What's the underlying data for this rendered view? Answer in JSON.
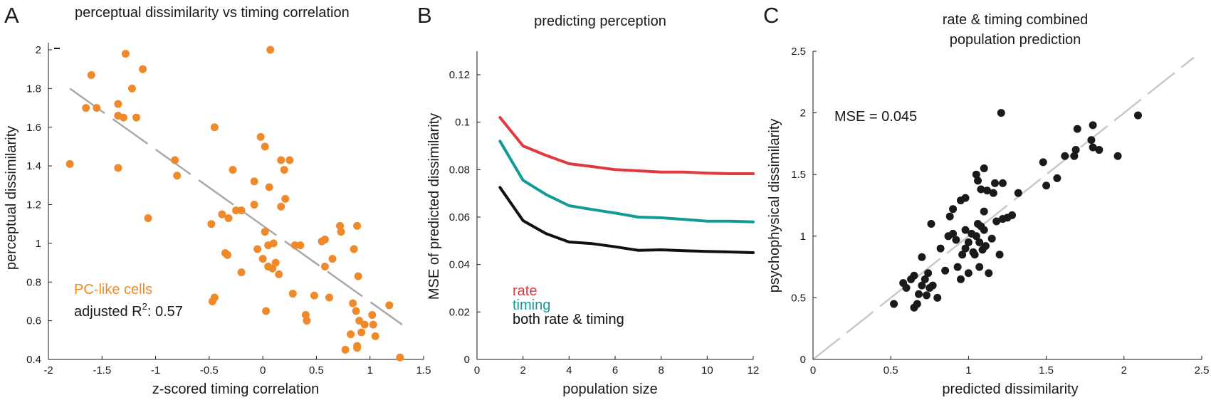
{
  "panels": [
    {
      "letter": "A",
      "title": [
        "perceptual dissimilarity vs timing correlation"
      ],
      "xlabel": "z-scored timing correlation",
      "ylabel": "perceptual dissimilarity",
      "xticks": [
        "-2",
        "-1.5",
        "-1",
        "-0.5",
        "0",
        "0.5",
        "1",
        "1.5"
      ],
      "yticks": [
        "0.4",
        "0.6",
        "0.8",
        "1",
        "1.2",
        "1.4",
        "1.6",
        "1.8",
        "2"
      ],
      "legend": {
        "cells": "PC-like cells",
        "fit_prefix": "adjusted R",
        "fit_sup": "2",
        "fit_value": ": 0.57"
      }
    },
    {
      "letter": "B",
      "title": [
        "predicting perception"
      ],
      "xlabel": "population size",
      "ylabel": "MSE of predicted dissimilarity",
      "xticks": [
        "0",
        "2",
        "4",
        "6",
        "8",
        "10",
        "12"
      ],
      "yticks": [
        "0",
        "0.02",
        "0.04",
        "0.06",
        "0.08",
        "0.1",
        "0.12"
      ],
      "legend": [
        "rate",
        "timing",
        "both rate & timing"
      ]
    },
    {
      "letter": "C",
      "title": [
        "rate & timing combined",
        "population prediction"
      ],
      "xlabel": "predicted dissimilarity",
      "ylabel": "psychophysical dissimilarity",
      "xticks": [
        "0",
        "0.5",
        "1",
        "1.5",
        "2",
        "2.5"
      ],
      "yticks": [
        "0",
        "0.5",
        "1",
        "1.5",
        "2",
        "2.5"
      ],
      "annotation": "MSE = 0.045"
    }
  ],
  "chart_data": [
    {
      "type": "scatter",
      "panel": "A",
      "title": "perceptual dissimilarity vs timing correlation",
      "xlabel": "z-scored timing correlation",
      "ylabel": "perceptual dissimilarity",
      "xlim": [
        -2,
        1.5
      ],
      "ylim": [
        0.4,
        2.0
      ],
      "grid": false,
      "point_color": "#f0892a",
      "fit_color": "#a8a8a8",
      "fit_line": {
        "x": [
          -1.8,
          1.3
        ],
        "y": [
          1.8,
          0.58
        ]
      },
      "adjusted_r2": 0.57,
      "points": [
        [
          -1.8,
          1.41
        ],
        [
          -1.65,
          1.7
        ],
        [
          -1.6,
          1.87
        ],
        [
          -1.55,
          1.7
        ],
        [
          -1.35,
          1.72
        ],
        [
          -1.35,
          1.66
        ],
        [
          -1.35,
          1.39
        ],
        [
          -1.3,
          1.65
        ],
        [
          -1.28,
          1.98
        ],
        [
          -1.22,
          1.8
        ],
        [
          -1.18,
          1.65
        ],
        [
          -1.12,
          1.9
        ],
        [
          -1.07,
          1.13
        ],
        [
          -0.82,
          1.43
        ],
        [
          -0.8,
          1.35
        ],
        [
          -0.48,
          1.1
        ],
        [
          -0.47,
          0.7
        ],
        [
          -0.45,
          0.72
        ],
        [
          -0.45,
          1.6
        ],
        [
          -0.38,
          1.15
        ],
        [
          -0.35,
          0.95
        ],
        [
          -0.33,
          0.94
        ],
        [
          -0.32,
          1.13
        ],
        [
          -0.28,
          1.38
        ],
        [
          -0.25,
          1.17
        ],
        [
          -0.2,
          1.17
        ],
        [
          -0.2,
          0.85
        ],
        [
          -0.08,
          1.32
        ],
        [
          -0.08,
          1.2
        ],
        [
          -0.05,
          0.97
        ],
        [
          -0.02,
          1.55
        ],
        [
          0.0,
          0.92
        ],
        [
          0.02,
          1.06
        ],
        [
          0.02,
          1.5
        ],
        [
          0.03,
          0.65
        ],
        [
          0.05,
          0.99
        ],
        [
          0.05,
          0.88
        ],
        [
          0.06,
          1.29
        ],
        [
          0.07,
          2.0
        ],
        [
          0.09,
          0.87
        ],
        [
          0.1,
          1.0
        ],
        [
          0.12,
          0.9
        ],
        [
          0.15,
          0.84
        ],
        [
          0.17,
          1.19
        ],
        [
          0.17,
          1.43
        ],
        [
          0.2,
          1.38
        ],
        [
          0.21,
          1.23
        ],
        [
          0.25,
          1.43
        ],
        [
          0.28,
          0.74
        ],
        [
          0.3,
          0.99
        ],
        [
          0.35,
          0.99
        ],
        [
          0.4,
          0.63
        ],
        [
          0.41,
          0.6
        ],
        [
          0.48,
          0.73
        ],
        [
          0.55,
          1.01
        ],
        [
          0.58,
          1.02
        ],
        [
          0.58,
          0.88
        ],
        [
          0.62,
          0.72
        ],
        [
          0.65,
          0.92
        ],
        [
          0.72,
          1.09
        ],
        [
          0.73,
          1.06
        ],
        [
          0.77,
          0.45
        ],
        [
          0.82,
          0.53
        ],
        [
          0.84,
          0.69
        ],
        [
          0.85,
          0.97
        ],
        [
          0.87,
          0.65
        ],
        [
          0.88,
          1.09
        ],
        [
          0.88,
          0.46
        ],
        [
          0.88,
          0.47
        ],
        [
          0.89,
          0.83
        ],
        [
          0.9,
          0.6
        ],
        [
          0.92,
          0.54
        ],
        [
          0.95,
          0.58
        ],
        [
          1.02,
          0.63
        ],
        [
          1.03,
          0.58
        ],
        [
          1.05,
          0.52
        ],
        [
          1.18,
          0.68
        ],
        [
          1.28,
          0.41
        ]
      ]
    },
    {
      "type": "line",
      "panel": "B",
      "title": "predicting perception",
      "xlabel": "population size",
      "ylabel": "MSE of predicted dissimilarity",
      "xlim": [
        0,
        12
      ],
      "ylim": [
        0,
        0.13
      ],
      "grid": false,
      "legend_position": "bottom-left",
      "x": [
        1,
        2,
        3,
        4,
        5,
        6,
        7,
        8,
        9,
        10,
        11,
        12
      ],
      "series": [
        {
          "name": "rate",
          "color": "#e0393e",
          "values": [
            0.102,
            0.09,
            0.086,
            0.0825,
            0.0813,
            0.08,
            0.0795,
            0.079,
            0.079,
            0.0785,
            0.0783,
            0.0783
          ]
        },
        {
          "name": "timing",
          "color": "#129b96",
          "values": [
            0.092,
            0.0755,
            0.0695,
            0.0648,
            0.0632,
            0.0617,
            0.06,
            0.0597,
            0.059,
            0.0583,
            0.0583,
            0.058
          ]
        },
        {
          "name": "both rate & timing",
          "color": "#111111",
          "values": [
            0.0725,
            0.0585,
            0.053,
            0.0495,
            0.0488,
            0.0475,
            0.046,
            0.0462,
            0.0458,
            0.0455,
            0.0453,
            0.045
          ]
        }
      ]
    },
    {
      "type": "scatter",
      "panel": "C",
      "title": "rate & timing combined population prediction",
      "xlabel": "predicted dissimilarity",
      "ylabel": "psychophysical dissimilarity",
      "xlim": [
        0,
        2.5
      ],
      "ylim": [
        0,
        2.5
      ],
      "grid": false,
      "point_color": "#1a1a1a",
      "diagonal_color": "#c8c8c8",
      "annotation": "MSE = 0.045",
      "mse": 0.045,
      "points": [
        [
          0.52,
          0.45
        ],
        [
          0.58,
          0.62
        ],
        [
          0.6,
          0.58
        ],
        [
          0.63,
          0.65
        ],
        [
          0.65,
          0.68
        ],
        [
          0.65,
          0.42
        ],
        [
          0.67,
          0.45
        ],
        [
          0.68,
          0.53
        ],
        [
          0.7,
          0.83
        ],
        [
          0.7,
          0.6
        ],
        [
          0.72,
          0.65
        ],
        [
          0.73,
          0.52
        ],
        [
          0.74,
          0.7
        ],
        [
          0.75,
          0.58
        ],
        [
          0.76,
          1.1
        ],
        [
          0.77,
          0.6
        ],
        [
          0.8,
          0.5
        ],
        [
          0.82,
          0.9
        ],
        [
          0.85,
          0.72
        ],
        [
          0.87,
          1.0
        ],
        [
          0.88,
          1.16
        ],
        [
          0.9,
          1.02
        ],
        [
          0.9,
          1.22
        ],
        [
          0.92,
          0.97
        ],
        [
          0.93,
          0.75
        ],
        [
          0.95,
          1.29
        ],
        [
          0.95,
          0.65
        ],
        [
          0.96,
          0.85
        ],
        [
          0.98,
          1.31
        ],
        [
          0.98,
          1.05
        ],
        [
          0.98,
          0.9
        ],
        [
          1.0,
          0.95
        ],
        [
          1.0,
          0.7
        ],
        [
          1.02,
          1.02
        ],
        [
          1.03,
          0.87
        ],
        [
          1.04,
          0.85
        ],
        [
          1.05,
          1.5
        ],
        [
          1.05,
          1.0
        ],
        [
          1.06,
          1.1
        ],
        [
          1.06,
          1.45
        ],
        [
          1.07,
          0.75
        ],
        [
          1.07,
          0.95
        ],
        [
          1.08,
          1.08
        ],
        [
          1.08,
          1.38
        ],
        [
          1.09,
          0.89
        ],
        [
          1.1,
          1.55
        ],
        [
          1.1,
          1.2
        ],
        [
          1.1,
          1.05
        ],
        [
          1.11,
          0.92
        ],
        [
          1.12,
          1.37
        ],
        [
          1.13,
          0.7
        ],
        [
          1.15,
          0.98
        ],
        [
          1.16,
          1.35
        ],
        [
          1.17,
          1.43
        ],
        [
          1.18,
          1.12
        ],
        [
          1.2,
          0.85
        ],
        [
          1.21,
          2.0
        ],
        [
          1.22,
          1.43
        ],
        [
          1.22,
          1.14
        ],
        [
          1.25,
          1.15
        ],
        [
          1.28,
          1.17
        ],
        [
          1.32,
          1.35
        ],
        [
          1.48,
          1.6
        ],
        [
          1.5,
          1.41
        ],
        [
          1.57,
          1.47
        ],
        [
          1.62,
          1.65
        ],
        [
          1.68,
          1.65
        ],
        [
          1.69,
          1.7
        ],
        [
          1.7,
          1.87
        ],
        [
          1.79,
          1.78
        ],
        [
          1.8,
          1.9
        ],
        [
          1.8,
          1.72
        ],
        [
          1.84,
          1.7
        ],
        [
          1.96,
          1.65
        ],
        [
          2.09,
          1.98
        ]
      ]
    }
  ]
}
